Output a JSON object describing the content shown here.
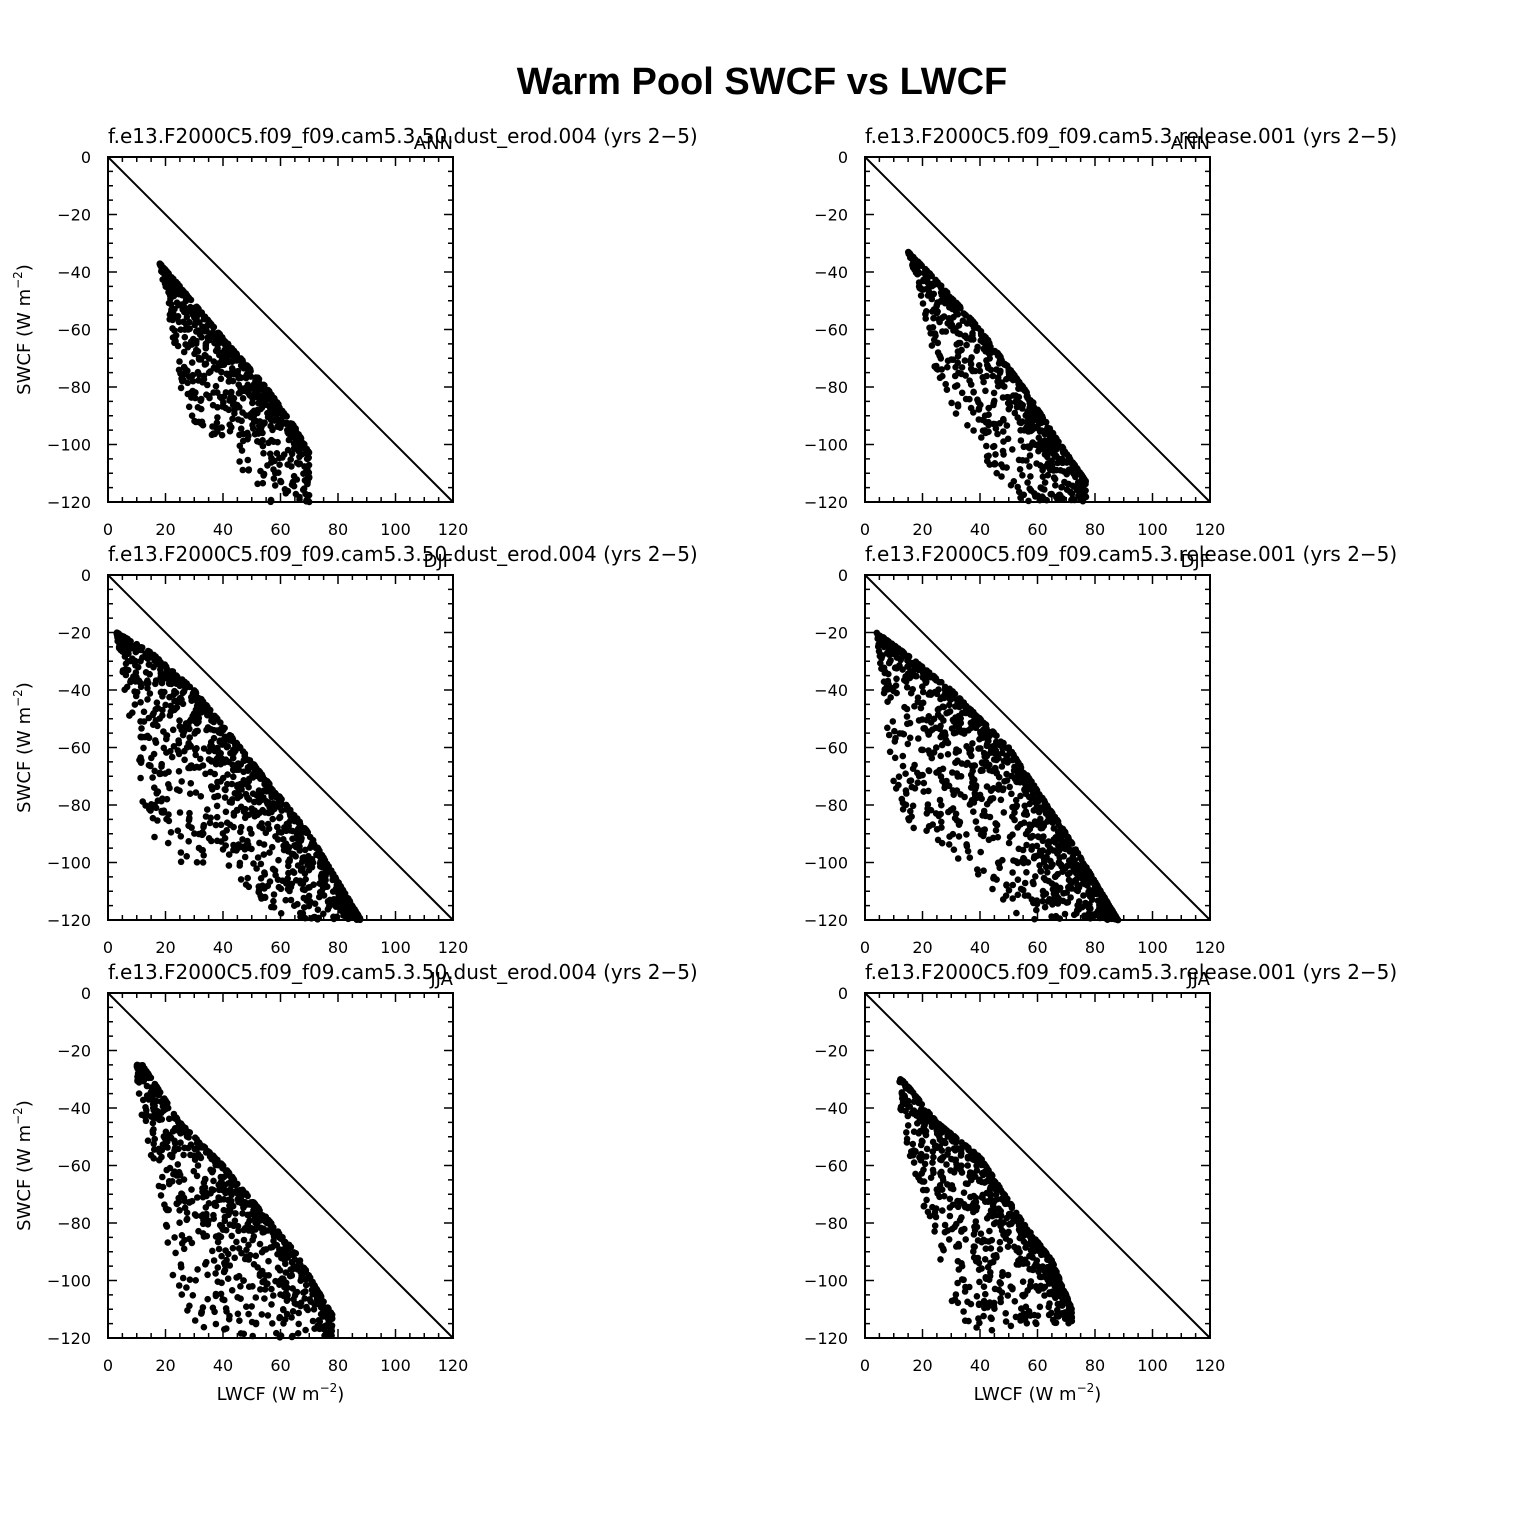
{
  "title": "Warm Pool SWCF vs LWCF",
  "chart_data": [
    {
      "type": "scatter",
      "title": "f.e13.F2000C5.f09_f09.cam5.3.50.dust_erod.004 (yrs 2−5)",
      "season": "ANN",
      "ylabel": "SWCF (W m⁻²)",
      "xlabel": "",
      "xlim": [
        0,
        120
      ],
      "ylim": [
        -120,
        0
      ],
      "xticks": [
        "0",
        "20",
        "40",
        "60",
        "80",
        "100",
        "120"
      ],
      "yticks": [
        "0",
        "−20",
        "−40",
        "−60",
        "−80",
        "−100",
        "−120"
      ],
      "reference_line": "1:1",
      "cloud": {
        "upper": [
          [
            18,
            -37
          ],
          [
            25,
            -45
          ],
          [
            40,
            -63
          ],
          [
            55,
            -80
          ],
          [
            65,
            -94
          ],
          [
            70,
            -103
          ]
        ],
        "lower": [
          [
            18,
            -37
          ],
          [
            22,
            -60
          ],
          [
            25,
            -80
          ],
          [
            30,
            -93
          ],
          [
            40,
            -100
          ],
          [
            55,
            -120
          ]
        ]
      },
      "count": 700
    },
    {
      "type": "scatter",
      "title": "f.e13.F2000C5.f09_f09.cam5.3.release.001 (yrs 2−5)",
      "season": "ANN",
      "ylabel": "",
      "xlabel": "",
      "xlim": [
        0,
        120
      ],
      "ylim": [
        -120,
        0
      ],
      "xticks": [
        "0",
        "20",
        "40",
        "60",
        "80",
        "100",
        "120"
      ],
      "yticks": [
        "0",
        "−20",
        "−40",
        "−60",
        "−80",
        "−100",
        "−120"
      ],
      "reference_line": "1:1",
      "cloud": {
        "upper": [
          [
            15,
            -33
          ],
          [
            25,
            -43
          ],
          [
            40,
            -60
          ],
          [
            55,
            -80
          ],
          [
            68,
            -100
          ],
          [
            77,
            -113
          ]
        ],
        "lower": [
          [
            15,
            -33
          ],
          [
            22,
            -60
          ],
          [
            25,
            -78
          ],
          [
            32,
            -92
          ],
          [
            45,
            -110
          ],
          [
            55,
            -120
          ]
        ]
      },
      "count": 700
    },
    {
      "type": "scatter",
      "title": "f.e13.F2000C5.f09_f09.cam5.3.50.dust_erod.004 (yrs 2−5)",
      "season": "DJF",
      "ylabel": "SWCF (W m⁻²)",
      "xlabel": "",
      "xlim": [
        0,
        120
      ],
      "ylim": [
        -120,
        0
      ],
      "xticks": [
        "0",
        "20",
        "40",
        "60",
        "80",
        "100",
        "120"
      ],
      "yticks": [
        "0",
        "−20",
        "−40",
        "−60",
        "−80",
        "−100",
        "−120"
      ],
      "reference_line": "1:1",
      "cloud": {
        "upper": [
          [
            3,
            -20
          ],
          [
            15,
            -27
          ],
          [
            30,
            -40
          ],
          [
            50,
            -65
          ],
          [
            70,
            -90
          ],
          [
            88,
            -120
          ]
        ],
        "lower": [
          [
            3,
            -20
          ],
          [
            8,
            -60
          ],
          [
            14,
            -88
          ],
          [
            20,
            -100
          ],
          [
            40,
            -100
          ],
          [
            60,
            -120
          ]
        ]
      },
      "count": 1100
    },
    {
      "type": "scatter",
      "title": "f.e13.F2000C5.f09_f09.cam5.3.release.001 (yrs 2−5)",
      "season": "DJF",
      "ylabel": "",
      "xlabel": "",
      "xlim": [
        0,
        120
      ],
      "ylim": [
        -120,
        0
      ],
      "xticks": [
        "0",
        "20",
        "40",
        "60",
        "80",
        "100",
        "120"
      ],
      "yticks": [
        "0",
        "−20",
        "−40",
        "−60",
        "−80",
        "−100",
        "−120"
      ],
      "reference_line": "1:1",
      "cloud": {
        "upper": [
          [
            4,
            -20
          ],
          [
            15,
            -28
          ],
          [
            30,
            -40
          ],
          [
            50,
            -60
          ],
          [
            70,
            -90
          ],
          [
            88,
            -120
          ]
        ],
        "lower": [
          [
            4,
            -20
          ],
          [
            8,
            -60
          ],
          [
            12,
            -85
          ],
          [
            25,
            -95
          ],
          [
            45,
            -110
          ],
          [
            55,
            -120
          ]
        ]
      },
      "count": 1100
    },
    {
      "type": "scatter",
      "title": "f.e13.F2000C5.f09_f09.cam5.3.50.dust_erod.004 (yrs 2−5)",
      "season": "JJA",
      "ylabel": "SWCF (W m⁻²)",
      "xlabel": "LWCF (W m⁻²)",
      "xlim": [
        0,
        120
      ],
      "ylim": [
        -120,
        0
      ],
      "xticks": [
        "0",
        "20",
        "40",
        "60",
        "80",
        "100",
        "120"
      ],
      "yticks": [
        "0",
        "−20",
        "−40",
        "−60",
        "−80",
        "−100",
        "−120"
      ],
      "reference_line": "1:1",
      "cloud": {
        "upper": [
          [
            12,
            -25
          ],
          [
            25,
            -45
          ],
          [
            40,
            -60
          ],
          [
            55,
            -78
          ],
          [
            65,
            -90
          ],
          [
            78,
            -112
          ]
        ],
        "lower": [
          [
            10,
            -35
          ],
          [
            18,
            -70
          ],
          [
            22,
            -100
          ],
          [
            30,
            -118
          ],
          [
            50,
            -120
          ],
          [
            75,
            -120
          ]
        ]
      },
      "count": 800
    },
    {
      "type": "scatter",
      "title": "f.e13.F2000C5.f09_f09.cam5.3.release.001 (yrs 2−5)",
      "season": "JJA",
      "ylabel": "",
      "xlabel": "LWCF (W m⁻²)",
      "xlim": [
        0,
        120
      ],
      "ylim": [
        -120,
        0
      ],
      "xticks": [
        "0",
        "20",
        "40",
        "60",
        "80",
        "100",
        "120"
      ],
      "yticks": [
        "0",
        "−20",
        "−40",
        "−60",
        "−80",
        "−100",
        "−120"
      ],
      "reference_line": "1:1",
      "cloud": {
        "upper": [
          [
            13,
            -30
          ],
          [
            25,
            -45
          ],
          [
            40,
            -57
          ],
          [
            55,
            -80
          ],
          [
            65,
            -93
          ],
          [
            72,
            -110
          ]
        ],
        "lower": [
          [
            12,
            -40
          ],
          [
            18,
            -68
          ],
          [
            25,
            -88
          ],
          [
            32,
            -115
          ],
          [
            45,
            -118
          ],
          [
            60,
            -115
          ]
        ]
      },
      "count": 800
    }
  ]
}
